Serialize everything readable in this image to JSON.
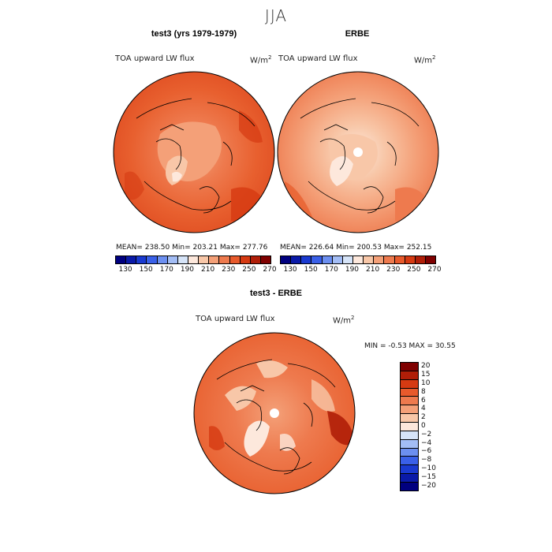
{
  "page_title": "JJA",
  "panels": [
    {
      "title": "test3 (yrs 1979-1979)",
      "variable": "TOA upward LW flux",
      "units_base": "W/m",
      "units_exp": "2",
      "stats": "MEAN=  238.50   Min=  203.21   Max=  277.76"
    },
    {
      "title": "ERBE",
      "variable": "TOA upward LW flux",
      "units_base": "W/m",
      "units_exp": "2",
      "stats": "MEAN=  226.64   Min=  200.53   Max=  252.15"
    },
    {
      "title": "test3 - ERBE",
      "variable": "TOA upward LW flux",
      "units_base": "W/m",
      "units_exp": "2",
      "stats": "MIN =   -0.53  MAX =   30.55"
    }
  ],
  "colorbar_abs": {
    "tick_labels": [
      "130",
      "150",
      "170",
      "190",
      "210",
      "230",
      "250",
      "270"
    ],
    "colors": [
      "#00007f",
      "#0a1aa8",
      "#1a3ad0",
      "#3a60e8",
      "#6c8ff0",
      "#a3bdf5",
      "#d6e4f8",
      "#fde8dc",
      "#f8c7a8",
      "#f4a078",
      "#ee7a4e",
      "#e85a2c",
      "#d63a12",
      "#b01e08",
      "#7f0000"
    ]
  },
  "colorbar_diff": {
    "tick_labels": [
      "20",
      "15",
      "10",
      "8",
      "6",
      "4",
      "2",
      "0",
      "−2",
      "−4",
      "−6",
      "−8",
      "−10",
      "−15",
      "−20"
    ],
    "colors": [
      "#7f0000",
      "#b01e08",
      "#d63a12",
      "#e85a2c",
      "#ee7a4e",
      "#f4a078",
      "#f8c7a8",
      "#fde8dc",
      "#d6e4f8",
      "#a3bdf5",
      "#6c8ff0",
      "#3a60e8",
      "#1a3ad0",
      "#0a1aa8",
      "#00007f"
    ]
  }
}
